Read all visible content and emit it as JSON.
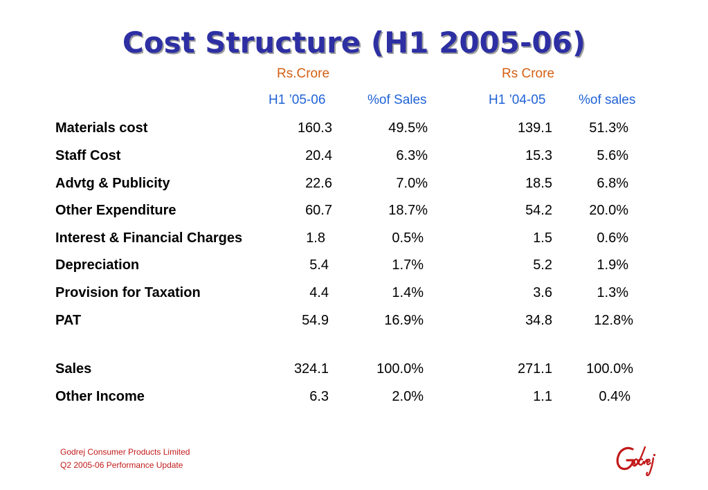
{
  "title": "Cost Structure (H1 2005-06)",
  "headers": {
    "unit_current": "Rs.Crore",
    "unit_previous": "Rs Crore",
    "period_current": "H1 ’05-06",
    "pct_current": "%of Sales",
    "period_previous": "H1 ’04-05",
    "pct_previous": "%of sales"
  },
  "rows": [
    {
      "label": "Materials cost",
      "cur": "160.3",
      "cur_pct": "49.5%",
      "prev": "139.1",
      "prev_pct": "51.3%"
    },
    {
      "label": "Staff Cost",
      "cur": "20.4",
      "cur_pct": "6.3%",
      "prev": "15.3",
      "prev_pct": "5.6%"
    },
    {
      "label": "Advtg & Publicity",
      "cur": "22.6",
      "cur_pct": "7.0%",
      "prev": "18.5",
      "prev_pct": "6.8%"
    },
    {
      "label": "Other Expenditure",
      "cur": "60.7",
      "cur_pct": "18.7%",
      "prev": "54.2",
      "prev_pct": "20.0%"
    },
    {
      "label": "Interest & Financial Charges",
      "cur": "1.8",
      "cur_pct": "0.5%",
      "prev": "1.5",
      "prev_pct": "0.6%"
    },
    {
      "label": "Depreciation",
      "cur": "5.4",
      "cur_pct": "1.7%",
      "prev": "5.2",
      "prev_pct": "1.9%"
    },
    {
      "label": "Provision for Taxation",
      "cur": "4.4",
      "cur_pct": "1.4%",
      "prev": "3.6",
      "prev_pct": "1.3%"
    },
    {
      "label": "PAT",
      "cur": "54.9",
      "cur_pct": "16.9%",
      "prev": "34.8",
      "prev_pct": "12.8%"
    },
    {
      "label": "Sales",
      "cur": "324.1",
      "cur_pct": "100.0%",
      "prev": "271.1",
      "prev_pct": "100.0%"
    },
    {
      "label": "Other Income",
      "cur": "6.3",
      "cur_pct": "2.0%",
      "prev": "1.1",
      "prev_pct": "0.4%"
    }
  ],
  "footer": {
    "company": "Godrej Consumer Products Limited",
    "subtitle": "Q2 2005-06 Performance Update"
  },
  "logo": {
    "text": "Godrej",
    "color": "#c21a1a"
  }
}
